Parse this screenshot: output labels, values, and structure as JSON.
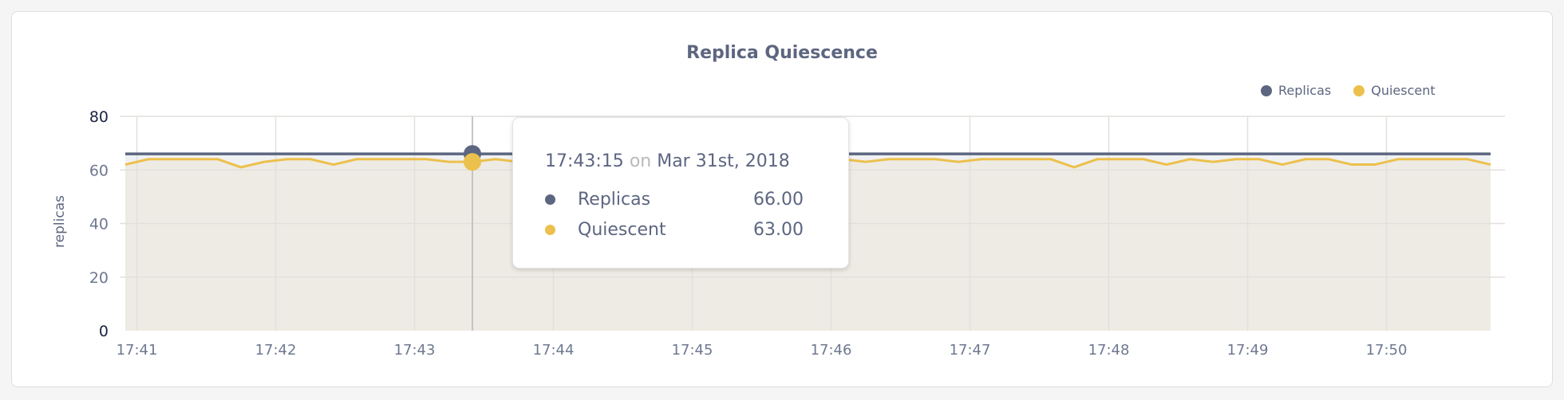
{
  "chart_data": {
    "type": "area",
    "title": "Replica Quiescence",
    "ylabel": "replicas",
    "xlabel": "",
    "ylim": [
      0,
      80
    ],
    "yticks": [
      0,
      20,
      40,
      60,
      80
    ],
    "xticks": [
      "17:41",
      "17:42",
      "17:43",
      "17:44",
      "17:45",
      "17:46",
      "17:47",
      "17:48",
      "17:49",
      "17:50"
    ],
    "x_start": "17:40:55",
    "x_step_seconds": 10,
    "grid": true,
    "legend_placement": "top-right",
    "series": [
      {
        "name": "Replicas",
        "color": "#5d6680",
        "values": [
          66,
          66,
          66,
          66,
          66,
          66,
          66,
          66,
          66,
          66,
          66,
          66,
          66,
          66,
          66,
          66,
          66,
          66,
          66,
          66,
          66,
          66,
          66,
          66,
          66,
          66,
          66,
          66,
          66,
          66,
          66,
          66,
          66,
          66,
          66,
          66,
          66,
          66,
          66,
          66,
          66,
          66,
          66,
          66,
          66,
          66,
          66,
          66,
          66,
          66,
          66,
          66,
          66,
          66,
          66,
          66,
          66,
          66,
          66,
          66
        ]
      },
      {
        "name": "Quiescent",
        "color": "#ecc04c",
        "values": [
          62,
          64,
          64,
          64,
          64,
          61,
          63,
          64,
          64,
          62,
          64,
          64,
          64,
          64,
          63,
          63,
          64,
          63,
          64,
          64,
          64,
          64,
          64,
          64,
          64,
          64,
          64,
          64,
          64,
          64,
          64,
          64,
          63,
          64,
          64,
          64,
          63,
          64,
          64,
          64,
          64,
          61,
          64,
          64,
          64,
          62,
          64,
          63,
          64,
          64,
          62,
          64,
          64,
          62,
          62,
          64,
          64,
          64,
          64,
          62
        ]
      }
    ]
  },
  "tooltip": {
    "time": "17:43:15",
    "on": "on",
    "date": "Mar 31st, 2018",
    "rows": [
      {
        "label": "Replicas",
        "value": "66.00",
        "color": "#5d6680"
      },
      {
        "label": "Quiescent",
        "value": "63.00",
        "color": "#ecc04c"
      }
    ]
  }
}
